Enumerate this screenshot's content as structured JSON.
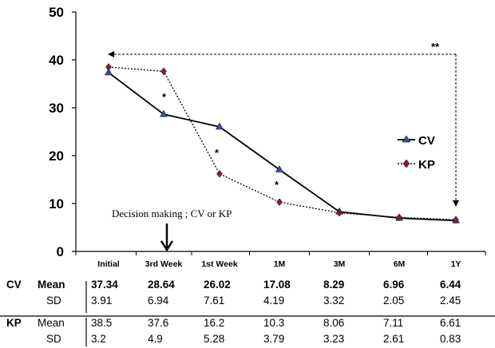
{
  "chart_data": {
    "type": "line",
    "title": "",
    "xlabel": "",
    "ylabel": "",
    "ylim": [
      0,
      50
    ],
    "yticks": [
      "0",
      "10",
      "20",
      "30",
      "40",
      "50"
    ],
    "categories": [
      "Initial",
      "3rd Week",
      "1st Week",
      "1M",
      "3M",
      "6M",
      "1Y"
    ],
    "series": [
      {
        "name": "CV",
        "values": [
          37.34,
          28.64,
          26.02,
          17.08,
          8.29,
          6.96,
          6.44
        ],
        "style": "solid",
        "color": "#000000",
        "marker_color": "#3a4fa0",
        "marker": "triangle"
      },
      {
        "name": "KP",
        "values": [
          38.5,
          37.6,
          16.2,
          10.3,
          8.06,
          7.11,
          6.61
        ],
        "style": "dotted",
        "color": "#000000",
        "marker_color": "#8b1a3a",
        "marker": "diamond"
      }
    ],
    "legend": {
      "placement": "right",
      "entries": [
        "CV",
        "KP"
      ]
    },
    "annotations": {
      "decision": "Decision making ; CV or KP",
      "single_star": "*",
      "double_star": "**"
    },
    "table": {
      "groups": [
        {
          "name": "CV",
          "rows": [
            {
              "label": "Mean",
              "values": [
                "37.34",
                "28.64",
                "26.02",
                "17.08",
                "8.29",
                "6.96",
                "6.44"
              ]
            },
            {
              "label": "SD",
              "values": [
                "3.91",
                "6.94",
                "7.61",
                "4.19",
                "3.32",
                "2.05",
                "2.45"
              ]
            }
          ]
        },
        {
          "name": "KP",
          "rows": [
            {
              "label": "Mean",
              "values": [
                "38.5",
                "37.6",
                "16.2",
                "10.3",
                "8.06",
                "7.11",
                "6.61"
              ]
            },
            {
              "label": "SD",
              "values": [
                "3.2",
                "4.9",
                "5.28",
                "3.79",
                "3.23",
                "2.61",
                "0.83"
              ]
            }
          ]
        }
      ]
    }
  }
}
